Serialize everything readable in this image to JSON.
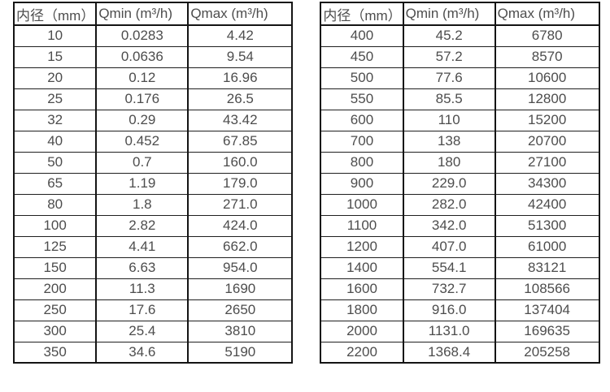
{
  "page": {
    "background": "#ffffff"
  },
  "colors": {
    "text": "#4d4d4d",
    "border": "#141414"
  },
  "tables": [
    {
      "name": "flow-range-table-small-diameters",
      "headers": [
        "内径（mm）",
        "Qmin (m³/h)",
        "Qmax (m³/h)"
      ],
      "rows": [
        [
          "10",
          "0.0283",
          "4.42"
        ],
        [
          "15",
          "0.0636",
          "9.54"
        ],
        [
          "20",
          "0.12",
          "16.96"
        ],
        [
          "25",
          "0.176",
          "26.5"
        ],
        [
          "32",
          "0.29",
          "43.42"
        ],
        [
          "40",
          "0.452",
          "67.85"
        ],
        [
          "50",
          "0.7",
          "160.0"
        ],
        [
          "65",
          "1.19",
          "179.0"
        ],
        [
          "80",
          "1.8",
          "271.0"
        ],
        [
          "100",
          "2.82",
          "424.0"
        ],
        [
          "125",
          "4.41",
          "662.0"
        ],
        [
          "150",
          "6.63",
          "954.0"
        ],
        [
          "200",
          "11.3",
          "1690"
        ],
        [
          "250",
          "17.6",
          "2650"
        ],
        [
          "300",
          "25.4",
          "3810"
        ],
        [
          "350",
          "34.6",
          "5190"
        ]
      ]
    },
    {
      "name": "flow-range-table-large-diameters",
      "headers": [
        "内径（mm）",
        "Qmin (m³/h)",
        "Qmax (m³/h)"
      ],
      "rows": [
        [
          "400",
          "45.2",
          "6780"
        ],
        [
          "450",
          "57.2",
          "8570"
        ],
        [
          "500",
          "77.6",
          "10600"
        ],
        [
          "550",
          "85.5",
          "12800"
        ],
        [
          "600",
          "110",
          "15200"
        ],
        [
          "700",
          "138",
          "20700"
        ],
        [
          "800",
          "180",
          "27100"
        ],
        [
          "900",
          "229.0",
          "34300"
        ],
        [
          "1000",
          "282.0",
          "42400"
        ],
        [
          "1100",
          "342.0",
          "51300"
        ],
        [
          "1200",
          "407.0",
          "61000"
        ],
        [
          "1400",
          "554.1",
          "83121"
        ],
        [
          "1600",
          "732.7",
          "108566"
        ],
        [
          "1800",
          "916.0",
          "137404"
        ],
        [
          "2000",
          "1131.0",
          "169635"
        ],
        [
          "2200",
          "1368.4",
          "205258"
        ]
      ]
    }
  ]
}
